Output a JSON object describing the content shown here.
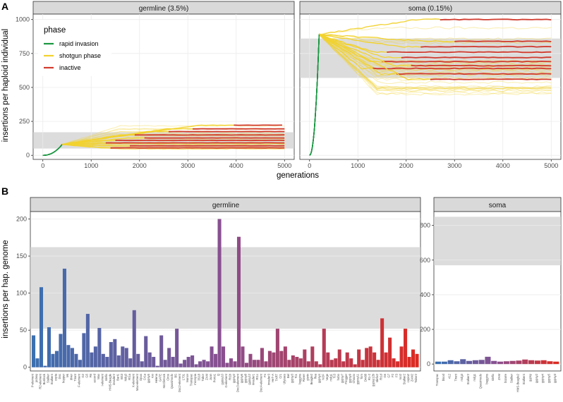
{
  "figure": {
    "panel_a_letter": "A",
    "panel_b_letter": "B"
  },
  "chart_data": [
    {
      "type": "line",
      "panel": "A",
      "ylabel": "insertions per haploid individual",
      "xlabel": "generations",
      "xlim": [
        -200,
        5200
      ],
      "ylim": [
        -30,
        1040
      ],
      "x_ticks": [
        0,
        1000,
        2000,
        3000,
        4000,
        5000
      ],
      "y_ticks": [
        0,
        250,
        500,
        750,
        1000
      ],
      "grid": true,
      "legend": {
        "title": "phase",
        "placement": "top-left",
        "entries": [
          {
            "label": "rapid invasion",
            "color": "#1a9641"
          },
          {
            "label": "shotgun phase",
            "color": "#f2d22e"
          },
          {
            "label": "inactive",
            "color": "#d13b2e"
          }
        ]
      },
      "facets": [
        {
          "name": "germline (3.5%)",
          "band": [
            50,
            170
          ],
          "invasion_end_gen": 400,
          "invasion_end_value": 80,
          "trajectories": [
            {
              "final": 222,
              "inactive_from": 3950
            },
            {
              "final": 195,
              "inactive_from": 3100
            },
            {
              "final": 175,
              "inactive_from": 2600
            },
            {
              "final": 150,
              "inactive_from": 1900
            },
            {
              "final": 128,
              "inactive_from": 2100
            },
            {
              "final": 110,
              "inactive_from": 1500
            },
            {
              "final": 92,
              "inactive_from": 1300
            },
            {
              "final": 70,
              "inactive_from": 1800
            },
            {
              "final": 55,
              "inactive_from": 1400
            }
          ]
        },
        {
          "name": "soma (0.15%)",
          "band": [
            570,
            860
          ],
          "invasion_end_gen": 200,
          "invasion_end_value": 890,
          "trajectories": [
            {
              "final": 1000,
              "inactive_from": 2700
            },
            {
              "final": 840,
              "inactive_from": 3000
            },
            {
              "final": 800,
              "inactive_from": 2300
            },
            {
              "final": 760,
              "inactive_from": 1600
            },
            {
              "final": 720,
              "inactive_from": 1900
            },
            {
              "final": 690,
              "inactive_from": 1500
            },
            {
              "final": 660,
              "inactive_from": 2100
            },
            {
              "final": 640,
              "inactive_from": 1300
            },
            {
              "final": 600,
              "inactive_from": 1800
            },
            {
              "final": 560,
              "inactive_from": 2500
            }
          ]
        }
      ]
    },
    {
      "type": "bar",
      "panel": "B",
      "ylabel": "insertions per hap. genome",
      "facets": [
        {
          "name": "germline",
          "ylim": [
            -5,
            210
          ],
          "y_ticks": [
            0,
            50,
            100,
            150,
            200
          ],
          "band": [
            52,
            162
          ],
          "color_start": "#3b6fb0",
          "color_mid": "#8a4f8f",
          "color_end": "#dc2b22",
          "categories": [
            "P-element",
            "jockey",
            "R2-element",
            "Burdock",
            "Stalker",
            "Stalker4",
            "copia",
            "Doc",
            "hopper",
            "Ivk",
            "diver",
            "Tirant",
            "F-element",
            "G2",
            "G5",
            "FB",
            "accord",
            "Max",
            "I-element",
            "Idefix",
            "HMS-Beagle",
            "invader2",
            "Bari1",
            "BS3",
            "Mdg3",
            "Rt1a",
            "X-element",
            "Max-element",
            "Opus",
            "Cr1a",
            "gypsy5",
            "roo",
            "Helena",
            "GATE",
            "McClintock",
            "Circe",
            "Quasimodo",
            "BS",
            "Doc2-element",
            "1731",
            "Ivanov",
            "Transpac",
            "micropia",
            "3S18",
            "Tabor",
            "ZAM",
            "Juan",
            "Porto1",
            "Q",
            "gypsy10",
            "G-element",
            "Rt1b",
            "gypsy2",
            "Doc3-element",
            "gypsy6",
            "gypsy8",
            "gypsy12",
            "invader1",
            "Rt1c",
            "Doc4-element",
            "F4",
            "invader3",
            "HeT-A",
            "TART",
            "Cr1",
            "Ulysses",
            "Bel",
            "gypsy3",
            "Tc1",
            "baggins",
            "Rover",
            "gtwin",
            "Beagle2",
            "flea",
            "gypsy4",
            "NOF",
            "Vege",
            "mdg1",
            "Tc3",
            "hobo",
            "gypsy7",
            "Frogger",
            "gypsy9",
            "Chouto",
            "gypsy11",
            "Tom",
            "Dm88",
            "R1-2",
            "gypsy12b",
            "Idefix2",
            "Rt1d",
            "G6",
            "G7",
            "F2",
            "F3",
            "roo2",
            "Stalker2",
            "copia2",
            "ZAM2",
            "Tabor2"
          ],
          "values": [
            43,
            12,
            108,
            2,
            54,
            18,
            22,
            45,
            133,
            30,
            26,
            18,
            10,
            46,
            72,
            20,
            28,
            53,
            18,
            14,
            34,
            38,
            16,
            28,
            26,
            12,
            77,
            18,
            8,
            42,
            20,
            14,
            2,
            43,
            10,
            26,
            14,
            52,
            5,
            10,
            14,
            16,
            4,
            8,
            10,
            8,
            28,
            18,
            200,
            28,
            6,
            12,
            8,
            176,
            28,
            6,
            18,
            10,
            10,
            26,
            8,
            22,
            20,
            52,
            22,
            28,
            10,
            16,
            14,
            12,
            24,
            8,
            28,
            8,
            4,
            52,
            20,
            10,
            12,
            24,
            8,
            20,
            12,
            4,
            24,
            10,
            26,
            28,
            20,
            10,
            66,
            20,
            40,
            12,
            8,
            28,
            52,
            14,
            24,
            18
          ]
        },
        {
          "name": "soma",
          "ylim": [
            -40,
            880
          ],
          "y_ticks": [
            0,
            200,
            400,
            600,
            800
          ],
          "band": [
            570,
            850
          ],
          "categories": [
            "Transpac",
            "blood",
            "412",
            "Tirant",
            "mdg3",
            "Stalker2",
            "mdg1",
            "Quasimodo",
            "baggins",
            "Idefix",
            "ZAM",
            "bizarre",
            "Stalker",
            "HMS-Beagle2",
            "Stalker4",
            "gypsy",
            "gypsy2",
            "gypsy4",
            "gypsy5",
            "gypsy3"
          ],
          "values": [
            14,
            14,
            22,
            16,
            28,
            18,
            22,
            24,
            42,
            18,
            14,
            16,
            18,
            20,
            26,
            22,
            20,
            22,
            16,
            14
          ]
        }
      ]
    }
  ]
}
